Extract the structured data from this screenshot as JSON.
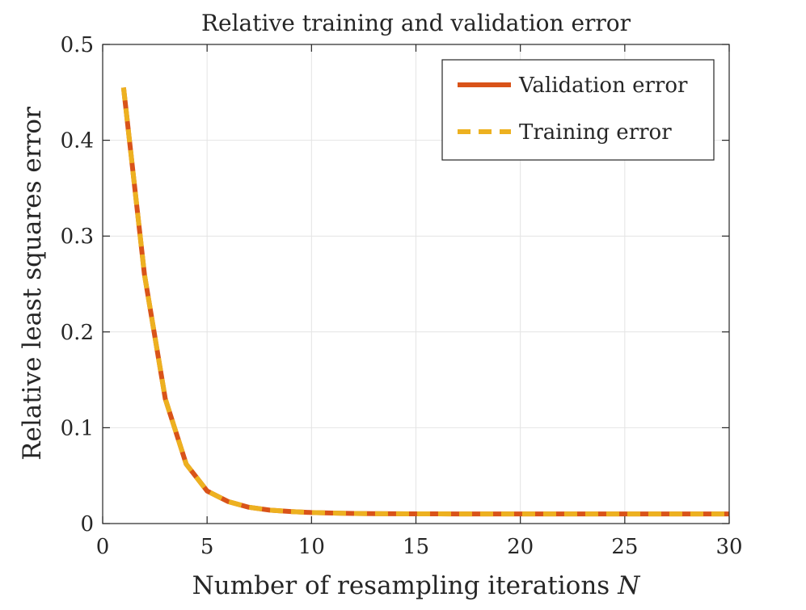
{
  "chart_data": {
    "type": "line",
    "title": "Relative training and validation error",
    "xlabel": "Number of resampling iterations",
    "xlabel_var": "N",
    "ylabel": "Relative least squares error",
    "xlim": [
      0,
      30
    ],
    "ylim": [
      0,
      0.5
    ],
    "xticks": [
      0,
      5,
      10,
      15,
      20,
      25,
      30
    ],
    "yticks": [
      0,
      0.1,
      0.2,
      0.3,
      0.4,
      0.5
    ],
    "xtick_labels": [
      "0",
      "5",
      "10",
      "15",
      "20",
      "25",
      "30"
    ],
    "ytick_labels": [
      "0",
      "0.1",
      "0.2",
      "0.3",
      "0.4",
      "0.5"
    ],
    "grid": true,
    "legend_position": "top-right",
    "x": [
      1,
      2,
      3,
      4,
      5,
      6,
      7,
      8,
      9,
      10,
      11,
      12,
      13,
      14,
      15,
      16,
      17,
      18,
      19,
      20,
      21,
      22,
      23,
      24,
      25,
      26,
      27,
      28,
      29,
      30
    ],
    "series": [
      {
        "name": "Validation error",
        "color": "#D95319",
        "style": "solid",
        "values": [
          0.455,
          0.26,
          0.13,
          0.062,
          0.034,
          0.023,
          0.017,
          0.014,
          0.0125,
          0.0115,
          0.011,
          0.0105,
          0.0103,
          0.0102,
          0.0101,
          0.0101,
          0.01,
          0.01,
          0.01,
          0.01,
          0.01,
          0.01,
          0.01,
          0.01,
          0.01,
          0.01,
          0.01,
          0.01,
          0.01,
          0.01
        ]
      },
      {
        "name": "Training error",
        "color": "#EDB120",
        "style": "dashed",
        "values": [
          0.455,
          0.26,
          0.13,
          0.062,
          0.034,
          0.023,
          0.017,
          0.014,
          0.0125,
          0.0115,
          0.011,
          0.0105,
          0.0103,
          0.0102,
          0.0101,
          0.0101,
          0.01,
          0.01,
          0.01,
          0.01,
          0.01,
          0.01,
          0.01,
          0.01,
          0.01,
          0.01,
          0.01,
          0.01,
          0.01,
          0.01
        ]
      }
    ]
  }
}
